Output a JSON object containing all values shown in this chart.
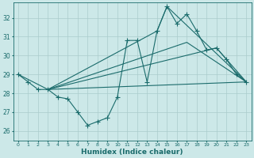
{
  "xlabel": "Humidex (Indice chaleur)",
  "bg_color": "#cce8e8",
  "grid_color": "#aacccc",
  "line_color": "#1a6b6b",
  "xlim": [
    -0.5,
    23.5
  ],
  "ylim": [
    25.5,
    32.8
  ],
  "yticks": [
    26,
    27,
    28,
    29,
    30,
    31,
    32
  ],
  "xticks": [
    0,
    1,
    2,
    3,
    4,
    5,
    6,
    7,
    8,
    9,
    10,
    11,
    12,
    13,
    14,
    15,
    16,
    17,
    18,
    19,
    20,
    21,
    22,
    23
  ],
  "line1_x": [
    0,
    1,
    2,
    3,
    4,
    5,
    6,
    7,
    8,
    9,
    10,
    11,
    12,
    13,
    14,
    15,
    16,
    17,
    18,
    19,
    20,
    21,
    22,
    23
  ],
  "line1_y": [
    29.0,
    28.6,
    28.2,
    28.2,
    27.8,
    27.7,
    27.0,
    26.3,
    26.5,
    26.7,
    27.8,
    30.8,
    30.8,
    28.6,
    31.3,
    32.6,
    31.7,
    32.2,
    31.3,
    30.3,
    30.4,
    29.8,
    29.0,
    28.6
  ],
  "line2_x": [
    3,
    14,
    15,
    23
  ],
  "line2_y": [
    28.2,
    31.3,
    32.6,
    28.6
  ],
  "line3_x": [
    3,
    17,
    23
  ],
  "line3_y": [
    28.2,
    30.7,
    28.6
  ],
  "line4_x": [
    0,
    3,
    23
  ],
  "line4_y": [
    29.0,
    28.2,
    28.6
  ],
  "line5_x": [
    3,
    20,
    23
  ],
  "line5_y": [
    28.2,
    30.4,
    28.6
  ]
}
